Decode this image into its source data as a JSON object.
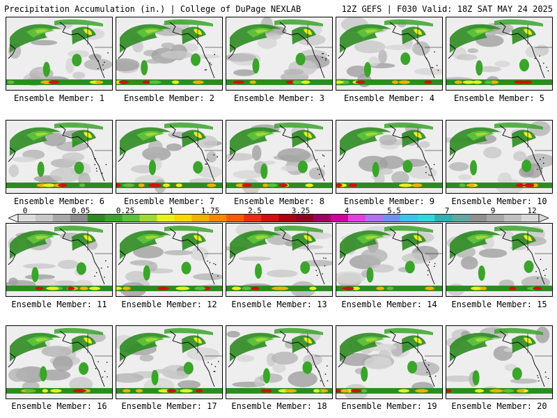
{
  "header": {
    "title_left": "Precipitation Accumulation (in.) | College of DuPage NEXLAB",
    "title_right": "12Z GEFS | F030 Valid: 18Z SAT MAY 24 2025"
  },
  "colorbar": {
    "labels": [
      "0",
      "0.05",
      "0.25",
      "1",
      "1.75",
      "2.5",
      "3.25",
      "4",
      "5.5",
      "7",
      "9",
      "12"
    ],
    "colors": [
      "#dcdcdc",
      "#c8c8c8",
      "#a8a8a8",
      "#8c8c8c",
      "#2e8b22",
      "#3aa52a",
      "#5cc03a",
      "#a0d838",
      "#e8f020",
      "#f8d800",
      "#f8b000",
      "#f88800",
      "#f06000",
      "#e83010",
      "#d01010",
      "#b00010",
      "#900020",
      "#a00060",
      "#d000a0",
      "#e040e0",
      "#b070f0",
      "#7090f0",
      "#40c0f0",
      "#30d8d8",
      "#30b0b0",
      "#60a8a0",
      "#909090",
      "#a8a8a8",
      "#c0c0c0",
      "#d8d8d8"
    ]
  },
  "panels": [
    {
      "label": "Ensemble Member: 1"
    },
    {
      "label": "Ensemble Member: 2"
    },
    {
      "label": "Ensemble Member: 3"
    },
    {
      "label": "Ensemble Member: 4"
    },
    {
      "label": "Ensemble Member: 5"
    },
    {
      "label": "Ensemble Member: 6"
    },
    {
      "label": "Ensemble Member: 7"
    },
    {
      "label": "Ensemble Member: 8"
    },
    {
      "label": "Ensemble Member: 9"
    },
    {
      "label": "Ensemble Member: 10"
    },
    {
      "label": "Ensemble Member: 11"
    },
    {
      "label": "Ensemble Member: 12"
    },
    {
      "label": "Ensemble Member: 13"
    },
    {
      "label": "Ensemble Member: 14"
    },
    {
      "label": "Ensemble Member: 15"
    },
    {
      "label": "Ensemble Member: 16"
    },
    {
      "label": "Ensemble Member: 17"
    },
    {
      "label": "Ensemble Member: 18"
    },
    {
      "label": "Ensemble Member: 19"
    },
    {
      "label": "Ensemble Member: 20"
    }
  ]
}
